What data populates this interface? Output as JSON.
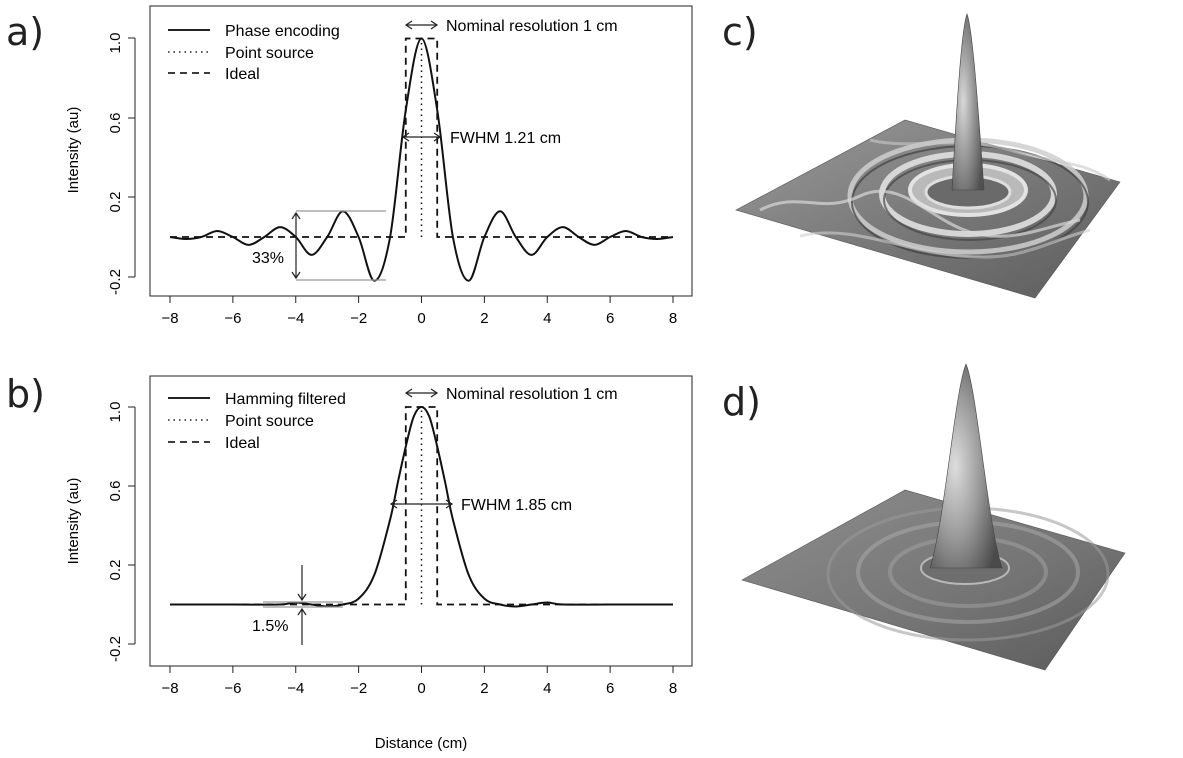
{
  "panel_labels": {
    "a": "a)",
    "b": "b)",
    "c": "c)",
    "d": "d)"
  },
  "shared": {
    "xlabel": "Distance (cm)",
    "ylabel": "Intensity (au)",
    "xticks": [
      "-8",
      "-6",
      "-4",
      "-2",
      "0",
      "2",
      "4",
      "6",
      "8"
    ],
    "yticks": [
      "-0.2",
      "0.2",
      "0.6",
      "1.0"
    ]
  },
  "chart_data": [
    {
      "type": "line",
      "panel": "a",
      "xlabel": "",
      "ylabel": "Intensity (au)",
      "xlim": [
        -8,
        8
      ],
      "ylim": [
        -0.25,
        1.1
      ],
      "legend": {
        "position": "top-left",
        "entries": [
          "Phase encoding",
          "Point source",
          "Ideal"
        ]
      },
      "annotations": {
        "nominal": "Nominal resolution 1 cm",
        "fwhm": "FWHM 1.21 cm",
        "ripple": "33%"
      },
      "series": [
        {
          "name": "Phase encoding",
          "style": "solid",
          "x": [
            -8,
            -7.5,
            -7,
            -6.5,
            -6,
            -5.5,
            -5,
            -4.5,
            -4,
            -3.5,
            -3,
            -2.5,
            -2,
            -1.5,
            -1,
            -0.5,
            0,
            0.5,
            1,
            1.5,
            2,
            2.5,
            3,
            3.5,
            4,
            4.5,
            5,
            5.5,
            6,
            6.5,
            7,
            7.5,
            8
          ],
          "y": [
            0.0,
            -0.01,
            0.0,
            0.03,
            0.0,
            -0.04,
            0.0,
            0.05,
            0.0,
            -0.09,
            0.0,
            0.13,
            0.0,
            -0.22,
            0.0,
            0.64,
            1.0,
            0.64,
            0.0,
            -0.22,
            0.0,
            0.13,
            0.0,
            -0.09,
            0.0,
            0.05,
            0.0,
            -0.04,
            0.0,
            0.03,
            0.0,
            -0.01,
            0.0
          ]
        },
        {
          "name": "Point source",
          "style": "dotted",
          "x": [
            0,
            0
          ],
          "y": [
            0,
            1.0
          ]
        },
        {
          "name": "Ideal",
          "style": "dashed",
          "x": [
            -8,
            -0.5,
            -0.5,
            0.5,
            0.5,
            8
          ],
          "y": [
            0,
            0,
            1.0,
            1.0,
            0,
            0
          ]
        }
      ]
    },
    {
      "type": "line",
      "panel": "b",
      "xlabel": "Distance (cm)",
      "ylabel": "Intensity (au)",
      "xlim": [
        -8,
        8
      ],
      "ylim": [
        -0.25,
        1.1
      ],
      "legend": {
        "position": "top-left",
        "entries": [
          "Hamming filtered",
          "Point source",
          "Ideal"
        ]
      },
      "annotations": {
        "nominal": "Nominal resolution 1 cm",
        "fwhm": "FWHM 1.85 cm",
        "ripple": "1.5%"
      },
      "series": [
        {
          "name": "Hamming filtered",
          "style": "solid",
          "x": [
            -8,
            -6,
            -4.5,
            -4,
            -3.5,
            -3,
            -2.5,
            -2,
            -1.5,
            -1,
            -0.75,
            -0.5,
            -0.25,
            0,
            0.25,
            0.5,
            0.75,
            1,
            1.5,
            2,
            2.5,
            3,
            3.5,
            4,
            4.5,
            6,
            8
          ],
          "y": [
            0.0,
            0.0,
            0.0,
            0.01,
            0.0,
            -0.01,
            0.0,
            0.03,
            0.15,
            0.43,
            0.62,
            0.8,
            0.95,
            1.0,
            0.95,
            0.8,
            0.62,
            0.43,
            0.15,
            0.03,
            0.0,
            -0.01,
            0.0,
            0.01,
            0.0,
            0.0,
            0.0
          ]
        },
        {
          "name": "Point source",
          "style": "dotted",
          "x": [
            0,
            0
          ],
          "y": [
            0,
            1.0
          ]
        },
        {
          "name": "Ideal",
          "style": "dashed",
          "x": [
            -8,
            -0.5,
            -0.5,
            0.5,
            0.5,
            8
          ],
          "y": [
            0,
            0,
            1.0,
            1.0,
            0,
            0
          ]
        }
      ]
    }
  ]
}
